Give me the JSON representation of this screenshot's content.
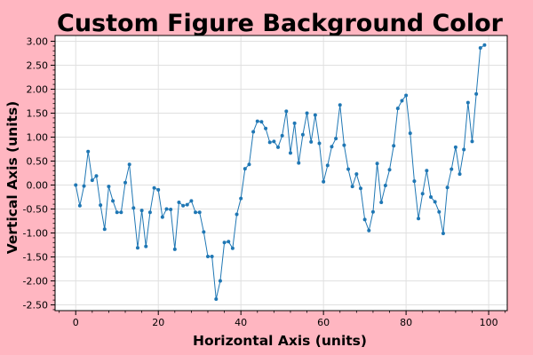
{
  "figure": {
    "background_color": "#ffb6c1",
    "axes_background_color": "#ffffff"
  },
  "chart_data": {
    "type": "line",
    "title": "Custom Figure Background Color",
    "xlabel": "Horizontal Axis (units)",
    "ylabel": "Vertical Axis (units)",
    "xlim": [
      -5,
      104.5
    ],
    "ylim": [
      -2.62,
      3.12
    ],
    "xticks": [
      0,
      20,
      40,
      60,
      80,
      100
    ],
    "xtick_labels": [
      "0",
      "20",
      "40",
      "60",
      "80",
      "100"
    ],
    "yticks": [
      -2.5,
      -2.0,
      -1.5,
      -1.0,
      -0.5,
      0.0,
      0.5,
      1.0,
      1.5,
      2.0,
      2.5,
      3.0
    ],
    "ytick_labels": [
      "-2.50",
      "-2.00",
      "-1.50",
      "-1.00",
      "-0.50",
      "0.00",
      "0.50",
      "1.00",
      "1.50",
      "2.00",
      "2.50",
      "3.00"
    ],
    "grid": true,
    "minor_ticks": true,
    "line_color": "#1f77b4",
    "marker": "circle",
    "series": [
      {
        "x": [
          0,
          1,
          2,
          3,
          4,
          5,
          6,
          7,
          8,
          9,
          10,
          11,
          12,
          13,
          14,
          15,
          16,
          17,
          18,
          19,
          20,
          21,
          22,
          23,
          24,
          25,
          26,
          27,
          28,
          29,
          30,
          31,
          32,
          33,
          34,
          35,
          36,
          37,
          38,
          39,
          40,
          41,
          42,
          43,
          44,
          45,
          46,
          47,
          48,
          49,
          50,
          51,
          52,
          53,
          54,
          55,
          56,
          57,
          58,
          59,
          60,
          61,
          62,
          63,
          64,
          65,
          66,
          67,
          68,
          69,
          70,
          71,
          72,
          73,
          74,
          75,
          76,
          77,
          78,
          79,
          80,
          81,
          82,
          83,
          84,
          85,
          86,
          87,
          88,
          89,
          90,
          91,
          92,
          93,
          94,
          95,
          96,
          97,
          98,
          99
        ],
        "values": [
          0.0,
          -0.43,
          -0.02,
          0.7,
          0.1,
          0.19,
          -0.42,
          -0.92,
          -0.03,
          -0.33,
          -0.57,
          -0.57,
          0.05,
          0.43,
          -0.48,
          -1.31,
          -0.53,
          -1.28,
          -0.57,
          -0.06,
          -0.1,
          -0.67,
          -0.5,
          -0.51,
          -1.34,
          -0.36,
          -0.43,
          -0.41,
          -0.33,
          -0.57,
          -0.57,
          -0.98,
          -1.49,
          -1.49,
          -2.38,
          -2.0,
          -1.2,
          -1.18,
          -1.32,
          -0.61,
          -0.28,
          0.34,
          0.43,
          1.11,
          1.33,
          1.32,
          1.18,
          0.89,
          0.91,
          0.79,
          1.03,
          1.54,
          0.67,
          1.29,
          0.46,
          1.05,
          1.5,
          0.9,
          1.46,
          0.87,
          0.07,
          0.41,
          0.8,
          0.97,
          1.67,
          0.83,
          0.33,
          -0.03,
          0.23,
          -0.07,
          -0.72,
          -0.95,
          -0.56,
          0.45,
          -0.36,
          -0.01,
          0.32,
          0.82,
          1.6,
          1.76,
          1.87,
          1.08,
          0.08,
          -0.7,
          -0.18,
          0.3,
          -0.25,
          -0.35,
          -0.56,
          -1.01,
          -0.05,
          0.33,
          0.79,
          0.23,
          0.74,
          1.72,
          0.91,
          1.9,
          2.86,
          2.92
        ]
      }
    ]
  }
}
